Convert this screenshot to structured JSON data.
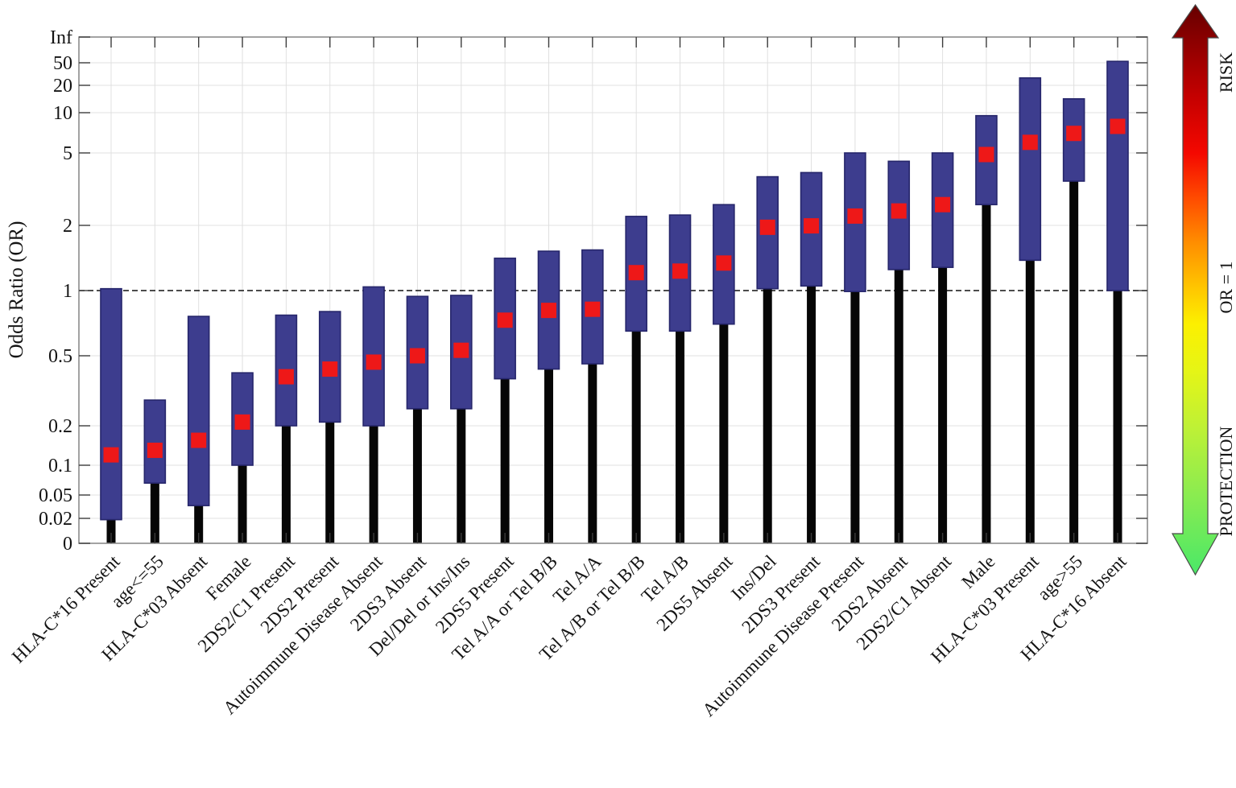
{
  "chart_data": {
    "type": "bar",
    "subtype": "forest-odds-ratio",
    "title": "",
    "xlabel": "",
    "ylabel": "Odds Ratio (OR)",
    "yticks": [
      "Inf",
      "50",
      "20",
      "10",
      "5",
      "2",
      "1",
      "0.5",
      "0.2",
      "0.1",
      "0.05",
      "0.02",
      "0"
    ],
    "reference_line": 1,
    "grid": true,
    "categories": [
      "HLA-C*16 Present",
      "age<=55",
      "HLA-C*03 Absent",
      "Female",
      "2DS2/C1 Present",
      "2DS2 Present",
      "Autoimmune Disease Absent",
      "2DS3 Absent",
      "Del/Del or Ins/Ins",
      "2DS5 Present",
      "Tel A/A or Tel B/B",
      "Tel A/A",
      "Tel A/B or Tel B/B",
      "Tel A/B",
      "2DS5 Absent",
      "Ins/Del",
      "2DS3 Present",
      "Autoimmune Disease Present",
      "2DS2 Absent",
      "2DS2/C1 Absent",
      "Male",
      "HLA-C*03 Present",
      "age>55",
      "HLA-C*16 Absent"
    ],
    "series": [
      {
        "name": "odds_ratio",
        "values": [
          0.12,
          0.13,
          0.155,
          0.21,
          0.38,
          0.42,
          0.46,
          0.5,
          0.53,
          0.73,
          0.81,
          0.82,
          1.21,
          1.23,
          1.34,
          1.96,
          1.99,
          2.25,
          2.4,
          2.6,
          4.9,
          6.0,
          7.0,
          7.9
        ]
      },
      {
        "name": "ci_low",
        "values": [
          0.019,
          0.066,
          0.033,
          0.1,
          0.2,
          0.21,
          0.2,
          0.25,
          0.25,
          0.37,
          0.42,
          0.45,
          0.65,
          0.65,
          0.7,
          1.02,
          1.05,
          0.99,
          1.25,
          1.28,
          2.6,
          1.38,
          3.5,
          1.0
        ]
      },
      {
        "name": "ci_high",
        "values": [
          1.02,
          0.28,
          0.76,
          0.4,
          0.77,
          0.8,
          1.04,
          0.94,
          0.95,
          1.41,
          1.52,
          1.54,
          2.24,
          2.28,
          2.6,
          3.7,
          3.9,
          5.0,
          4.5,
          5.0,
          9.5,
          27.0,
          14.2,
          53.0
        ]
      }
    ],
    "legend_position": "none",
    "colors": {
      "ci_box": "#3d3d8e",
      "ci_box_border": "#26266b",
      "point": "#ee1818",
      "stem": "#060606",
      "grid": "#e0e0e0",
      "frame": "#8c8c8c",
      "reference_dash": "#111111"
    }
  },
  "arrow": {
    "risk_label": "RISK",
    "or1_label": "OR = 1",
    "protection_label": "PROTECTION",
    "top_color": "#660000",
    "mid_color": "#ffc800",
    "bottom_color": "#4ae868"
  }
}
